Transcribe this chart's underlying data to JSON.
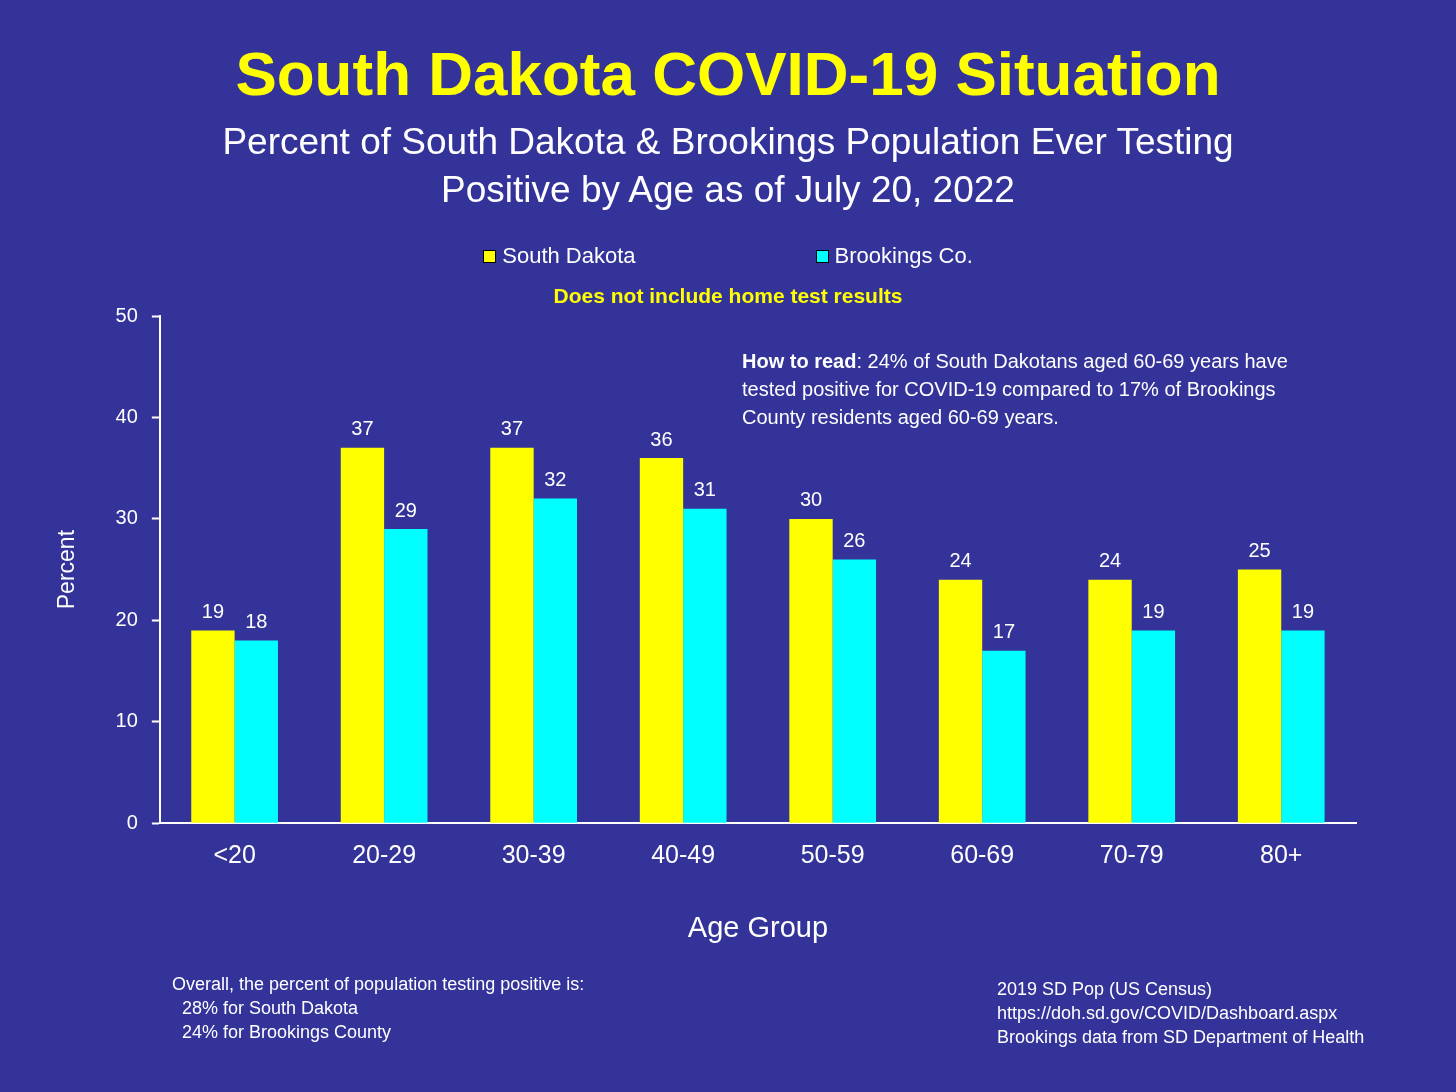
{
  "chart_data": {
    "type": "bar",
    "title": "South Dakota COVID-19 Situation",
    "subtitle": "Percent of South Dakota & Brookings Population Ever Testing Positive by Age as of July 20, 2022",
    "xlabel": "Age Group",
    "ylabel": "Percent",
    "categories": [
      "<20",
      "20-29",
      "30-39",
      "40-49",
      "50-59",
      "60-69",
      "70-79",
      "80+"
    ],
    "series": [
      {
        "name": "South Dakota",
        "color": "#ffff00",
        "values": [
          19,
          37,
          37,
          36,
          30,
          24,
          24,
          25
        ]
      },
      {
        "name": "Brookings Co.",
        "color": "#00ffff",
        "values": [
          18,
          29,
          32,
          31,
          26,
          17,
          19,
          19
        ]
      }
    ],
    "ylim": [
      0,
      50
    ],
    "yticks": [
      0,
      10,
      20,
      30,
      40,
      50
    ],
    "grid": false,
    "legend": "top",
    "data_labels": true,
    "annotations": [
      "Does not include home test results",
      "How to read:  24% of South Dakotans aged 60-69 years have tested positive for COVID-19 compared to 17% of Brookings County residents aged 60-69 years.",
      "Overall, the percent of population testing positive is:\n  28% for South Dakota\n  24% for Brookings County",
      "2019 SD Pop (US Census)\nhttps://doh.sd.gov/COVID/Dashboard.aspx\nBrookings data from SD Department of Health"
    ]
  }
}
